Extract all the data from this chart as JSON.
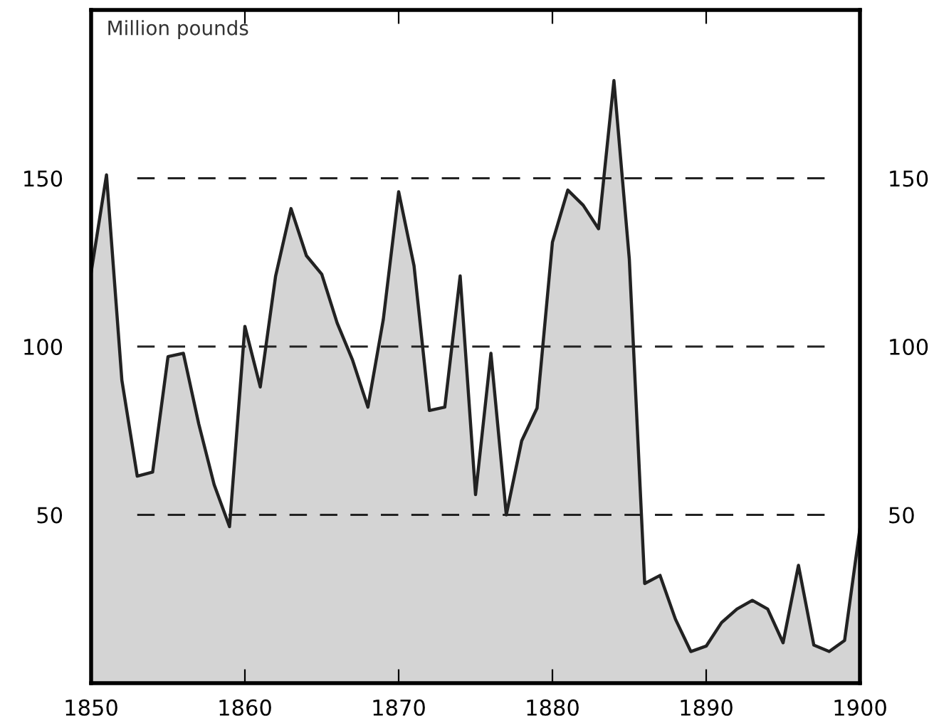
{
  "chart_data": {
    "type": "area",
    "ylabel": "Million pounds",
    "x": [
      1850,
      1851,
      1852,
      1853,
      1854,
      1855,
      1856,
      1857,
      1858,
      1859,
      1860,
      1861,
      1862,
      1863,
      1864,
      1865,
      1866,
      1867,
      1868,
      1869,
      1870,
      1871,
      1872,
      1873,
      1874,
      1875,
      1876,
      1877,
      1878,
      1879,
      1880,
      1881,
      1882,
      1883,
      1884,
      1885,
      1886,
      1887,
      1888,
      1889,
      1890,
      1891,
      1892,
      1893,
      1894,
      1895,
      1896,
      1897,
      1898,
      1899,
      1900
    ],
    "series": [
      {
        "color": "#d4d4d4",
        "values": [
          122,
          151,
          90,
          61.5,
          62.7,
          97,
          98,
          77,
          59,
          46.5,
          106,
          88,
          121,
          141,
          127,
          121.5,
          107,
          96,
          82,
          108,
          146,
          124,
          81,
          82,
          121,
          56,
          98,
          50,
          72,
          81.7,
          131,
          146.5,
          142,
          135,
          179,
          126,
          29.6,
          32,
          19,
          9.4,
          11,
          18,
          22,
          24.6,
          22,
          12,
          35,
          11.3,
          9.4,
          12.7,
          46
        ]
      }
    ],
    "xlim": [
      1850,
      1900
    ],
    "xticks": [
      1850,
      1860,
      1870,
      1880,
      1890,
      1900
    ],
    "ylim": [
      0,
      200
    ],
    "yticks": [
      50,
      100,
      150
    ],
    "y2lim": [
      0,
      200
    ],
    "y2ticks": [
      50,
      100,
      150
    ],
    "ref_lines": [
      {
        "axis": "y",
        "value": 50,
        "line_style": "dashed",
        "color": "#222222"
      },
      {
        "axis": "y",
        "value": 100,
        "line_style": "dashed",
        "color": "#222222"
      },
      {
        "axis": "y",
        "value": 150,
        "line_style": "dashed",
        "color": "#222222"
      }
    ],
    "grid": false,
    "legend": false
  }
}
